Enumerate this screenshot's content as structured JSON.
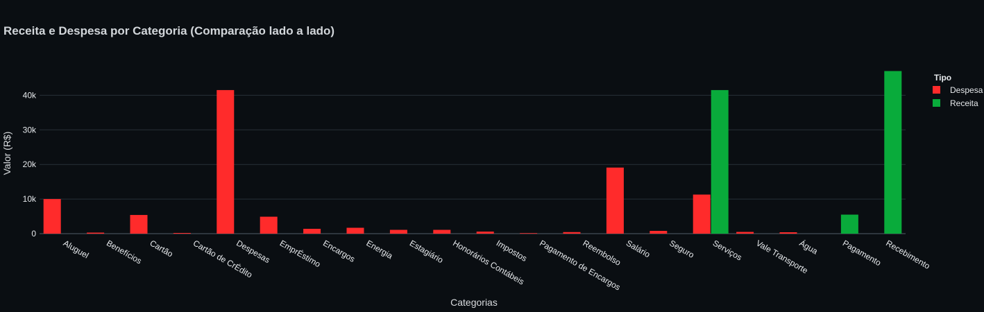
{
  "chart_data": {
    "type": "bar",
    "title": "Receita e Despesa por Categoria (Comparação lado a lado)",
    "xlabel": "Categorias",
    "ylabel": "Valor (R$)",
    "ylim": [
      0,
      49500
    ],
    "yticks": [
      0,
      10000,
      20000,
      30000,
      40000
    ],
    "ytick_labels": [
      "0",
      "10k",
      "20k",
      "30k",
      "40k"
    ],
    "grid": true,
    "legend_position": "top-right",
    "legend_title": "Tipo",
    "categories": [
      "Aluguel",
      "Benefícios",
      "Cartão",
      "Cartão de CrÉdito",
      "Despesas",
      "EmprÉstimo",
      "Encargos",
      "Energia",
      "Estagiário",
      "Honorários Contábeis",
      "Impostos",
      "Pagamento de Encargos",
      "Reembolso",
      "Salário",
      "Seguro",
      "Serviços",
      "Vale Transporte",
      "Água",
      "Pagamento",
      "Recebimento"
    ],
    "series": [
      {
        "name": "Despesa",
        "color": "#ff2b2b",
        "values": [
          10000,
          300,
          5400,
          200,
          41500,
          4900,
          1400,
          1700,
          1100,
          1100,
          600,
          150,
          450,
          19100,
          800,
          11300,
          500,
          400,
          null,
          null
        ]
      },
      {
        "name": "Receita",
        "color": "#09ab3b",
        "values": [
          null,
          null,
          null,
          null,
          null,
          null,
          null,
          null,
          null,
          null,
          null,
          null,
          null,
          null,
          null,
          41500,
          null,
          null,
          5500,
          47000
        ]
      }
    ]
  }
}
